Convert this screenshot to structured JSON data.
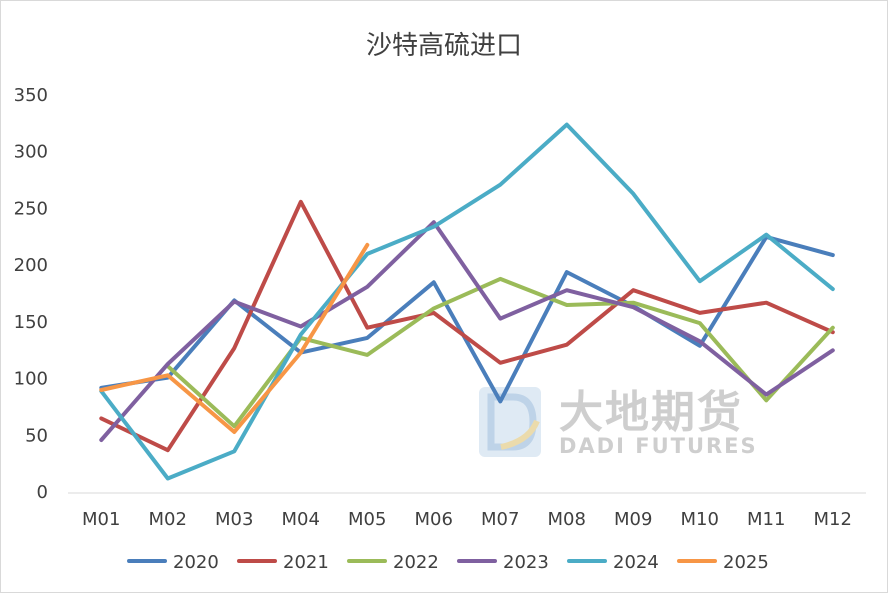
{
  "chart_data": {
    "type": "line",
    "title": "沙特高硫进口",
    "xlabel": "",
    "ylabel": "",
    "categories": [
      "M01",
      "M02",
      "M03",
      "M04",
      "M05",
      "M06",
      "M07",
      "M08",
      "M09",
      "M10",
      "M11",
      "M12"
    ],
    "ylim": [
      0,
      350
    ],
    "yticks": [
      0,
      50,
      100,
      150,
      200,
      250,
      300,
      350
    ],
    "grid": false,
    "legend_position": "bottom",
    "series": [
      {
        "name": "2020",
        "color": "#4a7ebb",
        "values": [
          91,
          100,
          168,
          122,
          135,
          184,
          79,
          193,
          163,
          128,
          224,
          208
        ]
      },
      {
        "name": "2021",
        "color": "#be4b48",
        "values": [
          64,
          36,
          126,
          255,
          144,
          157,
          113,
          129,
          177,
          157,
          166,
          140
        ]
      },
      {
        "name": "2022",
        "color": "#9bbb59",
        "values": [
          null,
          110,
          57,
          135,
          120,
          161,
          187,
          164,
          166,
          148,
          80,
          144
        ]
      },
      {
        "name": "2023",
        "color": "#7f60a0",
        "values": [
          45,
          112,
          167,
          145,
          180,
          237,
          152,
          177,
          162,
          132,
          85,
          124
        ]
      },
      {
        "name": "2024",
        "color": "#4bacc6",
        "values": [
          88,
          11,
          35,
          138,
          209,
          233,
          270,
          323,
          262,
          185,
          226,
          178
        ]
      },
      {
        "name": "2025",
        "color": "#f79646",
        "values": [
          89,
          102,
          52,
          122,
          217,
          null,
          null,
          null,
          null,
          null,
          null,
          null
        ]
      }
    ]
  },
  "watermark": {
    "cn": "大地期货",
    "en": "DADI FUTURES",
    "logo_letter": "D",
    "logo_colors": [
      "#b8cfe6",
      "#e9d8a4"
    ]
  }
}
